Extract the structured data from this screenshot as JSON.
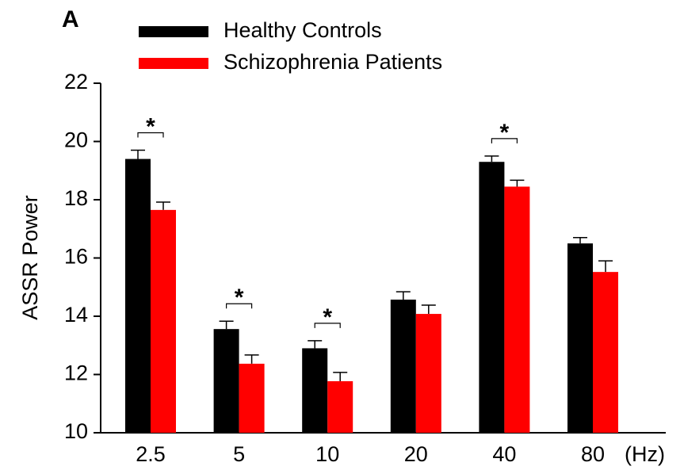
{
  "chart_data": {
    "type": "bar",
    "panel_label": "A",
    "ylabel": "ASSR Power",
    "xlabel": "(Hz)",
    "categories": [
      "2.5",
      "5",
      "10",
      "20",
      "40",
      "80"
    ],
    "series": [
      {
        "name": "Healthy Controls",
        "color": "#000000",
        "values": [
          19.4,
          13.56,
          12.9,
          14.57,
          19.3,
          16.5
        ],
        "errors": [
          0.3,
          0.27,
          0.26,
          0.27,
          0.2,
          0.2
        ]
      },
      {
        "name": "Schizophrenia Patients",
        "color": "#ff0000",
        "values": [
          17.65,
          12.37,
          11.77,
          14.08,
          18.45,
          15.52
        ],
        "errors": [
          0.27,
          0.3,
          0.3,
          0.3,
          0.22,
          0.38
        ]
      }
    ],
    "annotations": [
      {
        "text": "*",
        "category": "2.5"
      },
      {
        "text": "*",
        "category": "5"
      },
      {
        "text": "*",
        "category": "10"
      },
      {
        "text": "*",
        "category": "40"
      }
    ],
    "ylim": [
      10,
      22
    ],
    "yticks": [
      10,
      12,
      14,
      16,
      18,
      20,
      22
    ],
    "legend": "top-left"
  }
}
